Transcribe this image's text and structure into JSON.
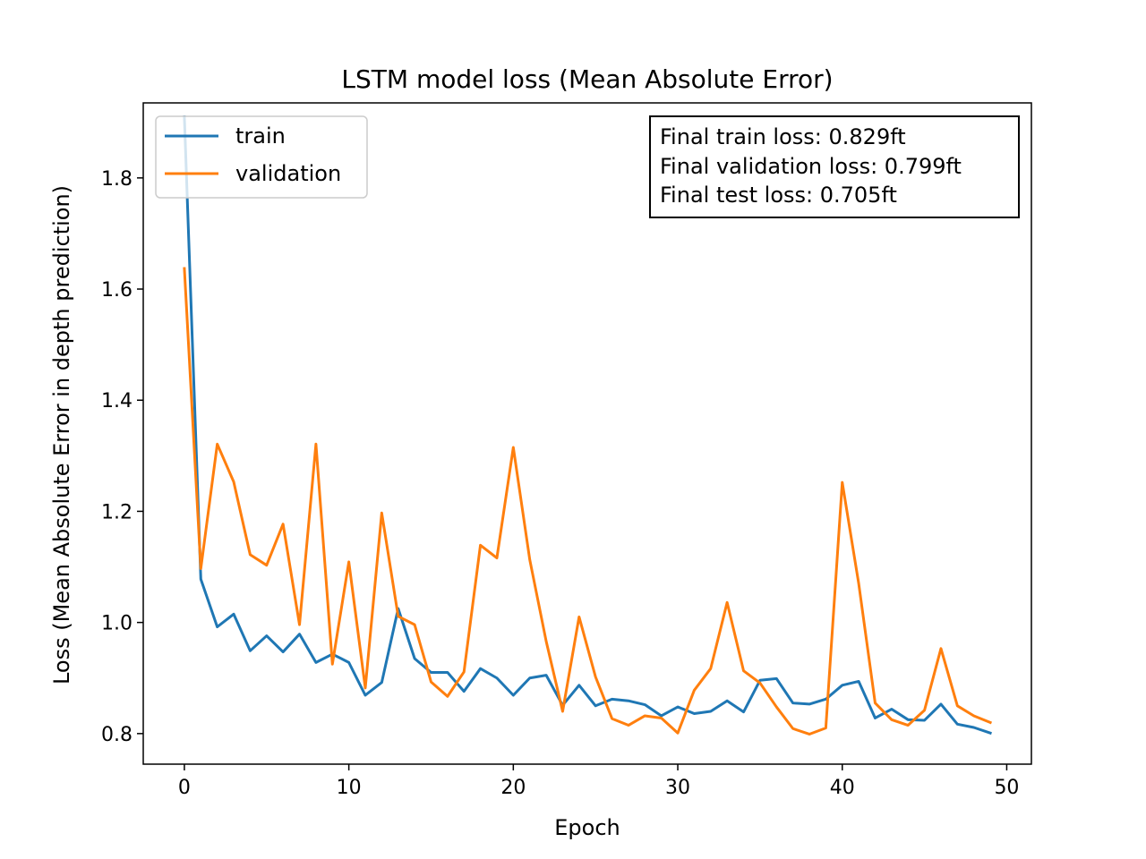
{
  "chart_data": {
    "type": "line",
    "title": "LSTM model loss (Mean Absolute Error)",
    "xlabel": "Epoch",
    "ylabel": "Loss (Mean Absolute Error in depth prediction)",
    "xlim": [
      -2.5,
      51.5
    ],
    "ylim": [
      0.745,
      1.935
    ],
    "xticks": [
      0,
      10,
      20,
      30,
      40,
      50
    ],
    "xtick_labels": [
      "0",
      "10",
      "20",
      "30",
      "40",
      "50"
    ],
    "yticks": [
      0.8,
      1.0,
      1.2,
      1.4,
      1.6,
      1.8
    ],
    "ytick_labels": [
      "0.8",
      "1.0",
      "1.2",
      "1.4",
      "1.6",
      "1.8"
    ],
    "grid": false,
    "legend_position": "top-left",
    "x": [
      0,
      1,
      2,
      3,
      4,
      5,
      6,
      7,
      8,
      9,
      10,
      11,
      12,
      13,
      14,
      15,
      16,
      17,
      18,
      19,
      20,
      21,
      22,
      23,
      24,
      25,
      26,
      27,
      28,
      29,
      30,
      31,
      32,
      33,
      34,
      35,
      36,
      37,
      38,
      39,
      40,
      41,
      42,
      43,
      44,
      45,
      46,
      47,
      48,
      49
    ],
    "series": [
      {
        "name": "train",
        "color": "#1f77b4",
        "values": [
          1.91,
          1.078,
          0.992,
          1.015,
          0.949,
          0.976,
          0.947,
          0.979,
          0.928,
          0.943,
          0.928,
          0.869,
          0.892,
          1.025,
          0.935,
          0.91,
          0.91,
          0.876,
          0.917,
          0.9,
          0.869,
          0.9,
          0.905,
          0.851,
          0.887,
          0.85,
          0.862,
          0.859,
          0.852,
          0.832,
          0.848,
          0.836,
          0.84,
          0.859,
          0.839,
          0.896,
          0.899,
          0.855,
          0.853,
          0.862,
          0.887,
          0.894,
          0.828,
          0.844,
          0.825,
          0.824,
          0.853,
          0.817,
          0.811,
          0.801
        ]
      },
      {
        "name": "validation",
        "color": "#ff7f0e",
        "values": [
          1.637,
          1.097,
          1.321,
          1.253,
          1.122,
          1.103,
          1.177,
          0.996,
          1.321,
          0.925,
          1.109,
          0.882,
          1.197,
          1.011,
          0.996,
          0.893,
          0.867,
          0.911,
          1.139,
          1.116,
          1.315,
          1.113,
          0.966,
          0.84,
          1.01,
          0.902,
          0.827,
          0.815,
          0.832,
          0.828,
          0.801,
          0.878,
          0.917,
          1.036,
          0.913,
          0.891,
          0.848,
          0.809,
          0.799,
          0.81,
          1.252,
          1.07,
          0.855,
          0.825,
          0.815,
          0.842,
          0.953,
          0.85,
          0.832,
          0.82
        ]
      }
    ],
    "annotation": [
      "Final train loss: 0.829ft",
      "Final validation loss: 0.799ft",
      "Final test loss: 0.705ft"
    ]
  }
}
